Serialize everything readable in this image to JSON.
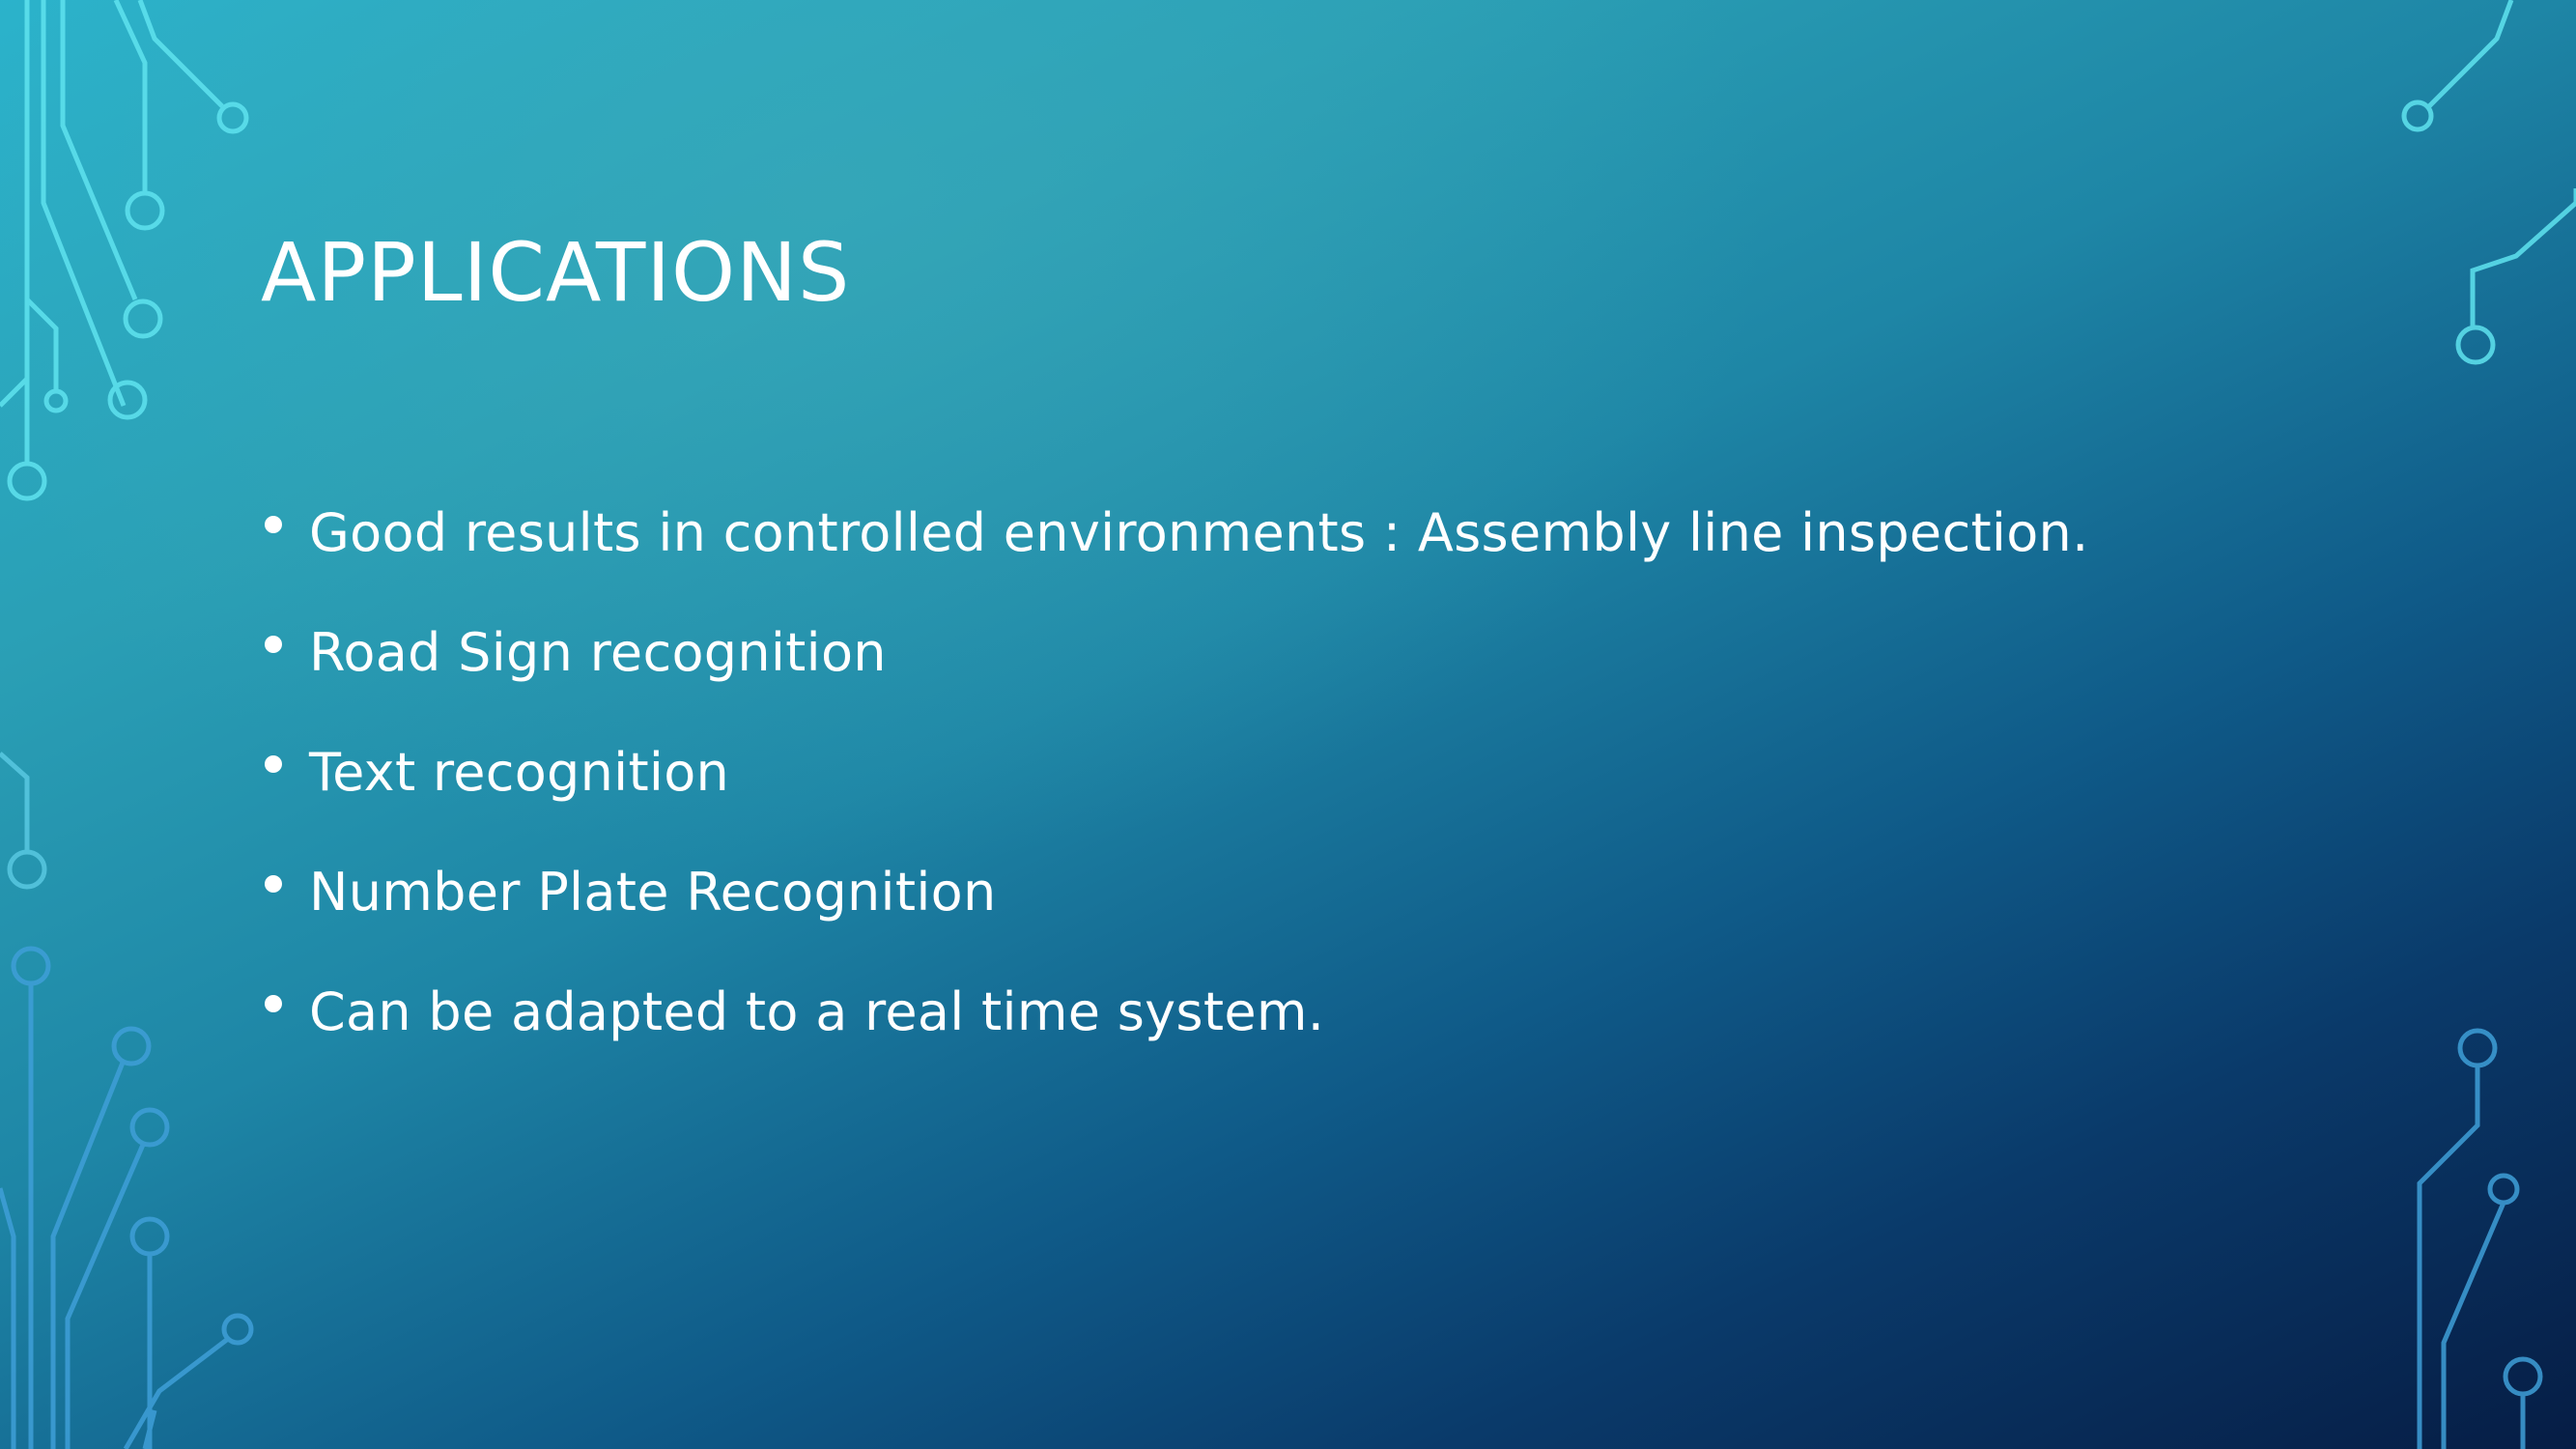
{
  "slide": {
    "title": "APPLICATIONS",
    "bullets": [
      "Good results in controlled environments : Assembly line inspection.",
      "Road Sign recognition",
      "Text recognition",
      "Number Plate Recognition",
      "Can be adapted to a real time system."
    ]
  },
  "theme": {
    "text_color": "#ffffff",
    "circuit_color_top": "#5fe3ef",
    "circuit_color_bottom": "#3f9fd8"
  }
}
